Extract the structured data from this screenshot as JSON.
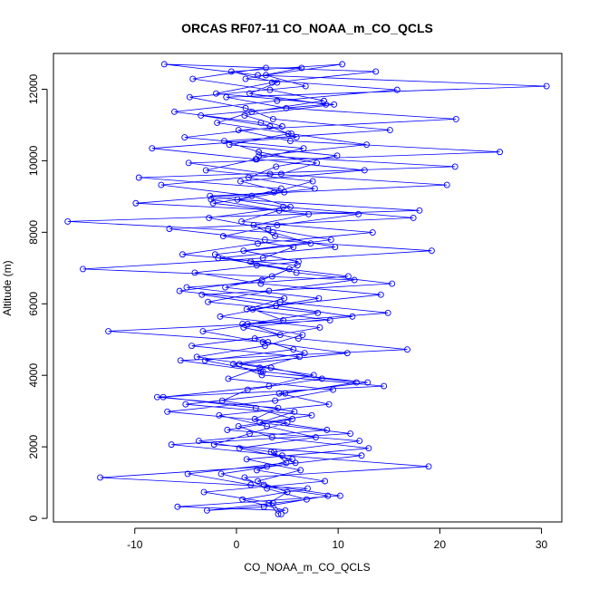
{
  "chart_data": {
    "type": "line",
    "title": "ORCAS RF07-11 CO_NOAA_m_CO_QCLS",
    "xlabel": "CO_NOAA_m_CO_QCLS",
    "ylabel": "Altitude (m)",
    "xlim": [
      -18,
      32
    ],
    "ylim": [
      -100,
      13000
    ],
    "x_ticks": [
      -10,
      0,
      10,
      20,
      30
    ],
    "y_ticks": [
      0,
      2000,
      4000,
      6000,
      8000,
      10000,
      12000
    ],
    "x_tick_labels": [
      "-10",
      "0",
      "10",
      "20",
      "30"
    ],
    "y_tick_labels": [
      "0",
      "2000",
      "4000",
      "6000",
      "8000",
      "10000",
      "12000"
    ],
    "grid": false,
    "colors": {
      "series": "#0000ff",
      "axes": "#000000"
    },
    "markers": "open-circle",
    "series": [
      {
        "name": "",
        "x": [
          4.1,
          3.2,
          5.0,
          2.1,
          6.3,
          1.0,
          13.0,
          3.5,
          0.2,
          7.4,
          -5.0,
          4.8,
          11.8,
          2.6,
          -3.1,
          5.6,
          1.8,
          8.2,
          -1.6,
          3.9,
          14.2,
          2.4,
          -4.1,
          6.1,
          0.7,
          9.3,
          3.1,
          -2.7,
          5.3,
          1.5,
          -7.4,
          4.4,
          7.9,
          2.2,
          -1.2,
          15.1,
          3.6,
          0.9,
          -4.6,
          6.8,
          2.9,
          10.4,
          -0.5,
          4.0,
          1.3,
          8.8,
          -3.5,
          3.3,
          5.9,
          -8.3,
          2.0,
          12.6,
          0.4,
          4.7,
          -2.3,
          7.1,
          1.7,
          3.8,
          9.7,
          -1.8,
          5.2,
          2.5,
          -5.6,
          4.3,
          14.9,
          0.6,
          6.5,
          2.8,
          -3.9,
          3.4,
          8.4,
          1.1,
          -1.4,
          5.7,
          2.3,
          11.2,
          -6.4,
          4.5,
          18.9,
          0.8,
          3.0,
          6.9,
          -2.9,
          2.7,
          9.0,
          1.4,
          -4.8,
          4.9,
          3.7,
          12.1,
          -0.9,
          5.5,
          1.9,
          -7.2,
          3.2,
          7.6,
          0.3,
          10.9,
          2.6,
          -3.3,
          4.6,
          1.6,
          8.1,
          -1.1,
          3.5,
          6.0,
          -5.3,
          2.1,
          13.4,
          0.5,
          4.2,
          -2.5,
          7.7,
          1.2,
          3.9,
          9.9,
          -0.7,
          5.1,
          2.4,
          -6.1,
          4.0,
          15.8,
          0.9,
          6.4,
          2.9,
          -4.3,
          3.3,
          8.6,
          1.5,
          -1.9,
          5.4,
          12.8,
          2.2,
          21.5,
          -9.6,
          4.4,
          0.1,
          18.0,
          -16.6,
          3.6,
          7.3,
          -2.1,
          2.0,
          11.0,
          -4.9,
          4.7,
          1.0,
          9.2,
          -12.6,
          3.1,
          6.7,
          -0.3,
          2.5,
          14.5,
          -7.8,
          4.1,
          1.8,
          8.9,
          -3.7,
          3.4,
          5.8,
          -1.5,
          2.7,
          10.2,
          -5.8,
          4.8,
          0.6,
          7.0,
          -13.4,
          3.0,
          12.3,
          -2.2,
          1.3,
          5.0,
          -6.8,
          3.8,
          9.5,
          -0.8,
          2.3,
          6.2,
          -4.4,
          4.3,
          1.1,
          8.0,
          -2.8,
          3.2,
          11.6,
          -15.1,
          2.6,
          5.6,
          -1.3,
          4.0,
          12.0,
          -9.9,
          3.7,
          7.5,
          -3.0,
          1.9,
          6.6,
          -5.1,
          4.5,
          0.8,
          9.6,
          -2.0,
          3.5,
          13.7,
          -7.1,
          2.1,
          30.5,
          -1.0,
          4.9,
          21.6,
          0.2,
          5.3,
          25.9,
          -4.7,
          3.3,
          20.7,
          -2.6,
          4.6,
          17.4,
          -6.6,
          2.8,
          19.2,
          1.4,
          5.9,
          15.3,
          -3.4,
          3.9,
          11.4,
          0.7,
          6.1,
          16.8,
          -5.5,
          2.4,
          12.9,
          4.2,
          9.1,
          -1.7,
          3.0,
          7.8,
          0.3,
          5.5,
          2.0,
          8.7,
          -3.2,
          3.6,
          4.4
        ]
      }
    ]
  }
}
